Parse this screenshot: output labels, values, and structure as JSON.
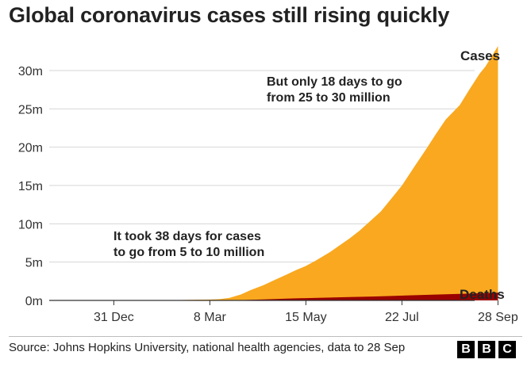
{
  "title": "Global coronavirus cases still rising quickly",
  "source": "Source: Johns Hopkins University, national health agencies, data to 28 Sep",
  "logo": [
    "B",
    "B",
    "C"
  ],
  "chart_data": {
    "type": "area",
    "x_ticks": [
      "31 Dec",
      "8 Mar",
      "15 May",
      "22 Jul",
      "28 Sep"
    ],
    "y_ticks": [
      "0m",
      "5m",
      "10m",
      "15m",
      "20m",
      "25m",
      "30m"
    ],
    "ylim": [
      0,
      33
    ],
    "grid": true,
    "x_day_range": [
      0,
      272
    ],
    "series": [
      {
        "name": "Cases",
        "color": "#f9a81f",
        "points": [
          [
            "31 Dec",
            0
          ],
          [
            "20 Jan",
            0.01
          ],
          [
            "8 Feb",
            0.03
          ],
          [
            "1 Mar",
            0.1
          ],
          [
            "8 Mar",
            0.11
          ],
          [
            "15 Mar",
            0.17
          ],
          [
            "22 Mar",
            0.34
          ],
          [
            "30 Mar",
            0.78
          ],
          [
            "6 Apr",
            1.35
          ],
          [
            "15 Apr",
            2.0
          ],
          [
            "22 Apr",
            2.6
          ],
          [
            "1 May",
            3.35
          ],
          [
            "8 May",
            3.95
          ],
          [
            "15 May",
            4.5
          ],
          [
            "22 May",
            5.2
          ],
          [
            "1 Jun",
            6.3
          ],
          [
            "8 Jun",
            7.2
          ],
          [
            "15 Jun",
            8.1
          ],
          [
            "22 Jun",
            9.1
          ],
          [
            "28 Jun",
            10.1
          ],
          [
            "7 Jul",
            11.6
          ],
          [
            "15 Jul",
            13.4
          ],
          [
            "22 Jul",
            15.0
          ],
          [
            "31 Jul",
            17.5
          ],
          [
            "8 Aug",
            19.7
          ],
          [
            "15 Aug",
            21.7
          ],
          [
            "22 Aug",
            23.6
          ],
          [
            "1 Sep",
            25.5
          ],
          [
            "8 Sep",
            27.6
          ],
          [
            "15 Sep",
            29.6
          ],
          [
            "19 Sep",
            30.5
          ],
          [
            "28 Sep",
            33.2
          ]
        ]
      },
      {
        "name": "Deaths",
        "color": "#990000",
        "points": [
          [
            "31 Dec",
            0
          ],
          [
            "8 Mar",
            0
          ],
          [
            "22 Mar",
            0.015
          ],
          [
            "1 Apr",
            0.05
          ],
          [
            "15 Apr",
            0.13
          ],
          [
            "1 May",
            0.24
          ],
          [
            "15 May",
            0.3
          ],
          [
            "1 Jun",
            0.37
          ],
          [
            "15 Jun",
            0.43
          ],
          [
            "1 Jul",
            0.51
          ],
          [
            "15 Jul",
            0.58
          ],
          [
            "1 Aug",
            0.68
          ],
          [
            "15 Aug",
            0.77
          ],
          [
            "1 Sep",
            0.85
          ],
          [
            "15 Sep",
            0.93
          ],
          [
            "28 Sep",
            1.0
          ]
        ]
      }
    ],
    "annotations": [
      {
        "lines": [
          "But only 18 days to go",
          "from 25 to 30 million"
        ]
      },
      {
        "lines": [
          "It took 38 days for cases",
          "to go from 5 to 10 million"
        ]
      }
    ],
    "series_labels": [
      "Cases",
      "Deaths"
    ]
  }
}
